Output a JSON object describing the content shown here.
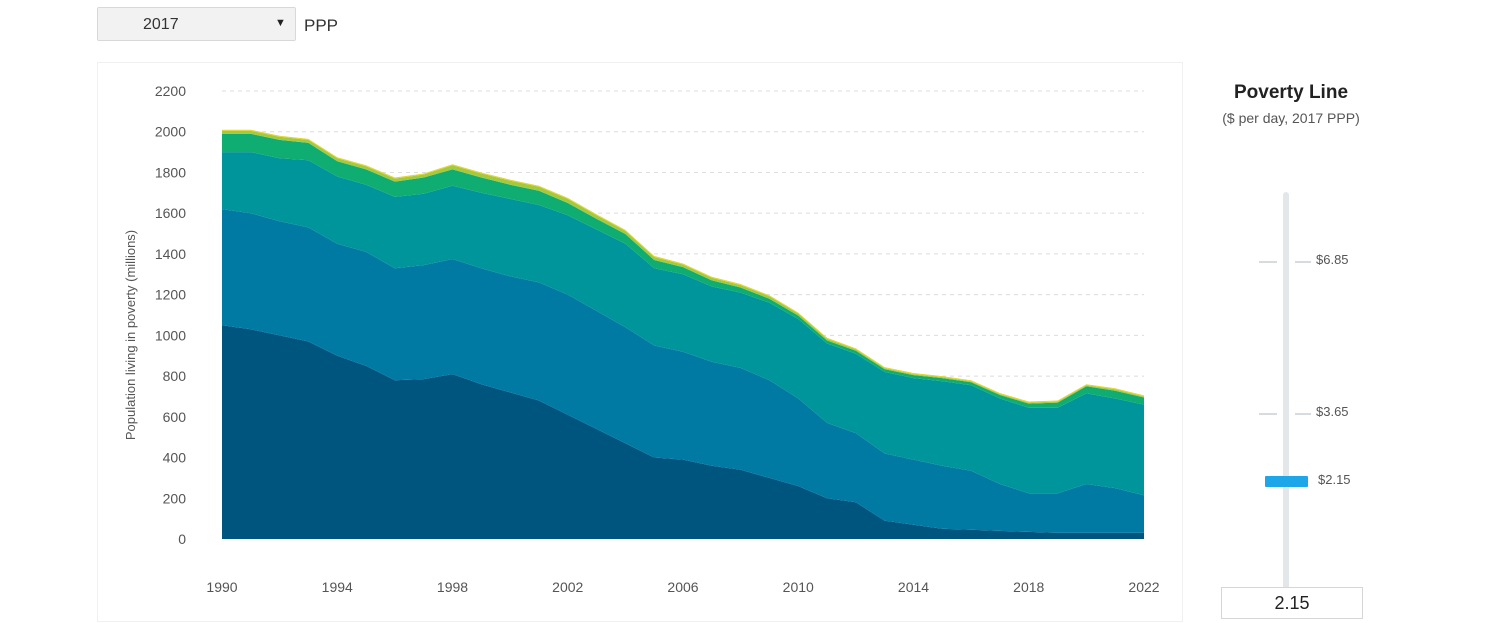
{
  "selector": {
    "year": "2017",
    "unit": "PPP"
  },
  "poverty_line": {
    "title": "Poverty Line",
    "subtitle": "($ per day, 2017 PPP)",
    "ticks": [
      "$6.85",
      "$3.65",
      "$2.15"
    ],
    "value": "2.15"
  },
  "colors": {
    "band1": "#00557f",
    "band2": "#007aa3",
    "band3": "#00949b",
    "band4": "#10ad73",
    "band5": "#a6c93c",
    "band6": "#e2d432",
    "slider_handle": "#1ea7e8",
    "track": "#e4e7ea"
  },
  "chart_data": {
    "type": "area",
    "stacked": true,
    "ylabel": "Population living in poverty (millions)",
    "xlabel": "",
    "ylim": [
      0,
      2200
    ],
    "yticks": [
      0,
      200,
      400,
      600,
      800,
      1000,
      1200,
      1400,
      1600,
      1800,
      2000,
      2200
    ],
    "xticks": [
      1990,
      1994,
      1998,
      2002,
      2006,
      2010,
      2014,
      2018,
      2022
    ],
    "grid": true,
    "x": [
      1990,
      1991,
      1992,
      1993,
      1994,
      1995,
      1996,
      1997,
      1998,
      1999,
      2000,
      2001,
      2002,
      2003,
      2004,
      2005,
      2006,
      2007,
      2008,
      2009,
      2010,
      2011,
      2012,
      2013,
      2014,
      2015,
      2016,
      2017,
      2018,
      2019,
      2020,
      2021,
      2022
    ],
    "series": [
      {
        "values": [
          1050,
          1030,
          1000,
          970,
          900,
          850,
          780,
          785,
          810,
          760,
          720,
          680,
          610,
          540,
          470,
          400,
          390,
          360,
          340,
          300,
          260,
          200,
          180,
          90,
          70,
          50,
          45,
          40,
          35,
          30,
          30,
          30,
          30
        ]
      },
      {
        "values": [
          570,
          570,
          560,
          560,
          550,
          560,
          550,
          560,
          565,
          570,
          570,
          580,
          590,
          580,
          570,
          550,
          530,
          510,
          500,
          480,
          430,
          370,
          340,
          330,
          320,
          310,
          290,
          230,
          190,
          195,
          240,
          220,
          185
        ]
      },
      {
        "values": [
          280,
          300,
          310,
          330,
          330,
          330,
          350,
          350,
          360,
          370,
          380,
          380,
          390,
          400,
          410,
          380,
          380,
          370,
          370,
          380,
          390,
          390,
          390,
          400,
          400,
          415,
          420,
          420,
          420,
          420,
          445,
          440,
          445
        ]
      },
      {
        "values": [
          90,
          90,
          90,
          85,
          75,
          75,
          75,
          80,
          80,
          75,
          70,
          70,
          60,
          52,
          48,
          40,
          35,
          30,
          25,
          20,
          17,
          15,
          14,
          14,
          15,
          15,
          15,
          17,
          20,
          25,
          35,
          38,
          35
        ]
      },
      {
        "values": [
          15,
          15,
          15,
          15,
          15,
          15,
          15,
          15,
          20,
          20,
          20,
          20,
          20,
          18,
          15,
          15,
          13,
          13,
          12,
          12,
          10,
          8,
          7,
          5,
          5,
          5,
          5,
          5,
          5,
          5,
          5,
          7,
          5
        ]
      },
      {
        "values": [
          5,
          5,
          5,
          5,
          5,
          5,
          5,
          5,
          5,
          5,
          5,
          5,
          5,
          5,
          5,
          5,
          5,
          5,
          5,
          5,
          5,
          5,
          5,
          5,
          5,
          5,
          5,
          5,
          5,
          5,
          5,
          5,
          5
        ]
      }
    ]
  }
}
